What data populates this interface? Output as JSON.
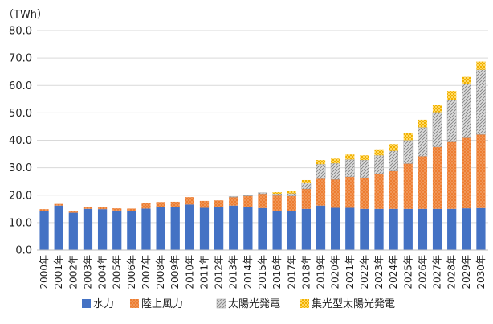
{
  "chart_data": {
    "type": "bar",
    "stacked": true,
    "unit_label": "（TWh）",
    "title": "",
    "xlabel": "",
    "ylabel": "",
    "ylim": [
      0,
      80
    ],
    "yticks": [
      "0.0",
      "10.0",
      "20.0",
      "30.0",
      "40.0",
      "50.0",
      "60.0",
      "70.0",
      "80.0"
    ],
    "grid": true,
    "legend_position": "bottom",
    "categories": [
      "2000年",
      "2001年",
      "2002年",
      "2003年",
      "2004年",
      "2005年",
      "2006年",
      "2007年",
      "2008年",
      "2009年",
      "2010年",
      "2011年",
      "2012年",
      "2013年",
      "2014年",
      "2015年",
      "2016年",
      "2017年",
      "2018年",
      "2019年",
      "2020年",
      "2021年",
      "2022年",
      "2023年",
      "2024年",
      "2025年",
      "2026年",
      "2027年",
      "2028年",
      "2029年",
      "2030年"
    ],
    "series": [
      {
        "name": "水力",
        "color": "#4472c4",
        "pattern": "solid",
        "values": [
          14.3,
          16.2,
          13.6,
          15.0,
          14.9,
          14.4,
          14.1,
          15.1,
          15.7,
          15.6,
          16.6,
          15.4,
          15.6,
          16.2,
          15.7,
          15.3,
          14.3,
          14.1,
          15.0,
          16.2,
          15.4,
          15.4,
          15.0,
          15.0,
          15.0,
          15.0,
          15.0,
          15.0,
          15.0,
          15.2,
          15.3
        ]
      },
      {
        "name": "陸上風力",
        "color": "#ed7d31",
        "pattern": "dots",
        "values": [
          0.6,
          0.6,
          0.5,
          0.6,
          0.8,
          0.8,
          1.0,
          1.9,
          1.8,
          2.0,
          2.7,
          2.5,
          2.5,
          3.1,
          4.0,
          5.2,
          5.6,
          5.6,
          7.3,
          9.8,
          10.3,
          11.3,
          11.4,
          12.8,
          13.8,
          16.5,
          19.2,
          22.6,
          24.4,
          25.7,
          26.8
        ]
      },
      {
        "name": "太陽光発電",
        "color": "#b0b0b0",
        "pattern": "hatch",
        "values": [
          0.0,
          0.0,
          0.0,
          0.0,
          0.0,
          0.0,
          0.0,
          0.0,
          0.0,
          0.0,
          0.0,
          0.0,
          0.0,
          0.2,
          0.2,
          0.4,
          0.6,
          0.9,
          2.2,
          5.3,
          5.9,
          6.3,
          6.4,
          6.7,
          7.3,
          8.5,
          10.5,
          12.6,
          15.4,
          19.6,
          23.6
        ]
      },
      {
        "name": "集光型太陽光発電",
        "color": "#ffc000",
        "pattern": "checker",
        "values": [
          0.0,
          0.0,
          0.0,
          0.0,
          0.0,
          0.0,
          0.0,
          0.0,
          0.0,
          0.0,
          0.0,
          0.0,
          0.0,
          0.0,
          0.0,
          0.0,
          0.6,
          1.0,
          1.0,
          1.5,
          1.7,
          1.8,
          1.7,
          2.2,
          2.5,
          2.7,
          2.8,
          2.8,
          3.2,
          2.6,
          3.0
        ]
      }
    ]
  }
}
